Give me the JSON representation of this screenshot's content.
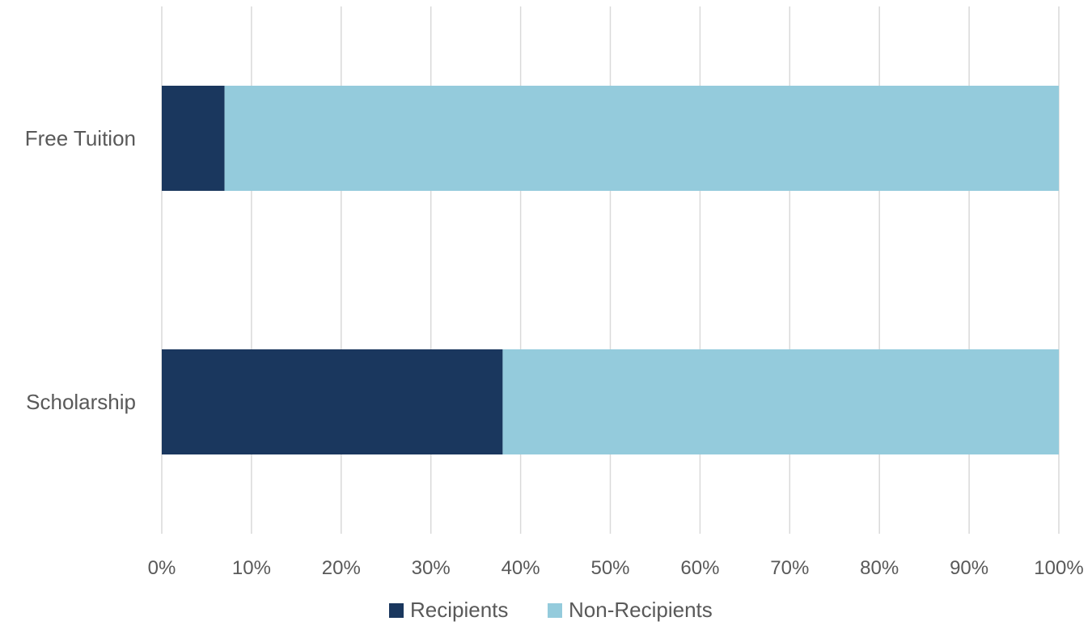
{
  "chart_data": {
    "type": "bar",
    "orientation": "horizontal",
    "stacked": "percent",
    "categories": [
      "Free Tuition",
      "Scholarship"
    ],
    "series": [
      {
        "name": "Recipients",
        "values": [
          7,
          38
        ],
        "color": "#1a375e"
      },
      {
        "name": "Non-Recipients",
        "values": [
          93,
          62
        ],
        "color": "#94cbdc"
      }
    ],
    "xlim": [
      0,
      100
    ],
    "x_ticks": [
      "0%",
      "10%",
      "20%",
      "30%",
      "40%",
      "50%",
      "60%",
      "70%",
      "80%",
      "90%",
      "100%"
    ],
    "grid": true,
    "legend_position": "bottom",
    "title": "",
    "xlabel": "",
    "ylabel": ""
  }
}
